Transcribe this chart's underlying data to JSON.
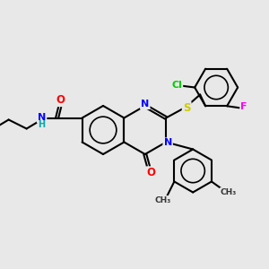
{
  "bg_color": "#e8e8e8",
  "atom_colors": {
    "C": "#000000",
    "N": "#0000ff",
    "O": "#ff0000",
    "S": "#cccc00",
    "Cl": "#00cc00",
    "F": "#ff00ff",
    "H": "#00aaaa"
  },
  "bond_color": "#000000",
  "font_size": 7.5
}
